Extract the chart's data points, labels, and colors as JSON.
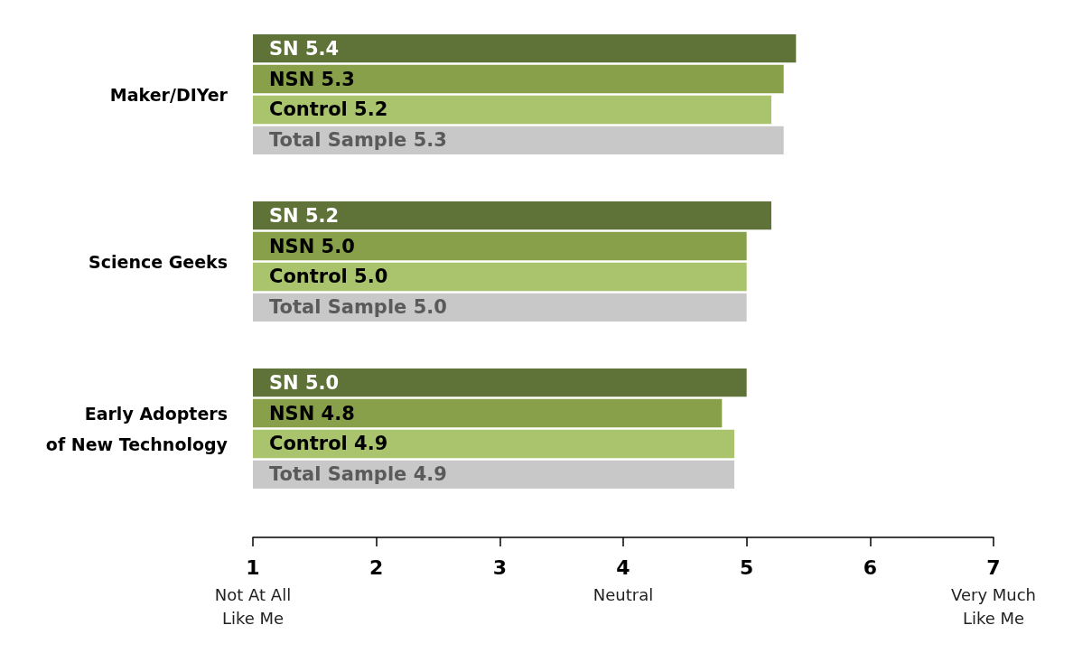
{
  "chart_data": {
    "type": "bar",
    "orientation": "horizontal",
    "categories": [
      "Maker/DIYer",
      "Science Geeks",
      "Early Adopters\nof New Technology"
    ],
    "series": [
      {
        "name": "SN",
        "color": "#5f7238",
        "values": [
          5.4,
          5.2,
          5.0
        ],
        "value_labels": [
          "5.4",
          "5.2",
          "5.0"
        ]
      },
      {
        "name": "NSN",
        "color": "#88a04a",
        "values": [
          5.3,
          5.0,
          4.8
        ],
        "value_labels": [
          "5.3",
          "5.0",
          "4.8"
        ]
      },
      {
        "name": "Control",
        "color": "#a9c46c",
        "values": [
          5.2,
          5.0,
          4.9
        ],
        "value_labels": [
          "5.2",
          "5.0",
          "4.9"
        ]
      },
      {
        "name": "Total Sample",
        "color": "#c8c8c8",
        "values": [
          5.3,
          5.0,
          4.9
        ],
        "value_labels": [
          "5.3",
          "5.0",
          "4.9"
        ]
      }
    ],
    "xlim": [
      1,
      7
    ],
    "xticks": [
      {
        "value": 1,
        "label": "1\nNot At All\nLike Me"
      },
      2,
      3,
      {
        "value": 4,
        "label": "4\nNeutral"
      },
      5,
      6,
      {
        "value": 7,
        "label": "7\nVery Much\nLike Me"
      }
    ],
    "grid": false,
    "legend": false
  }
}
